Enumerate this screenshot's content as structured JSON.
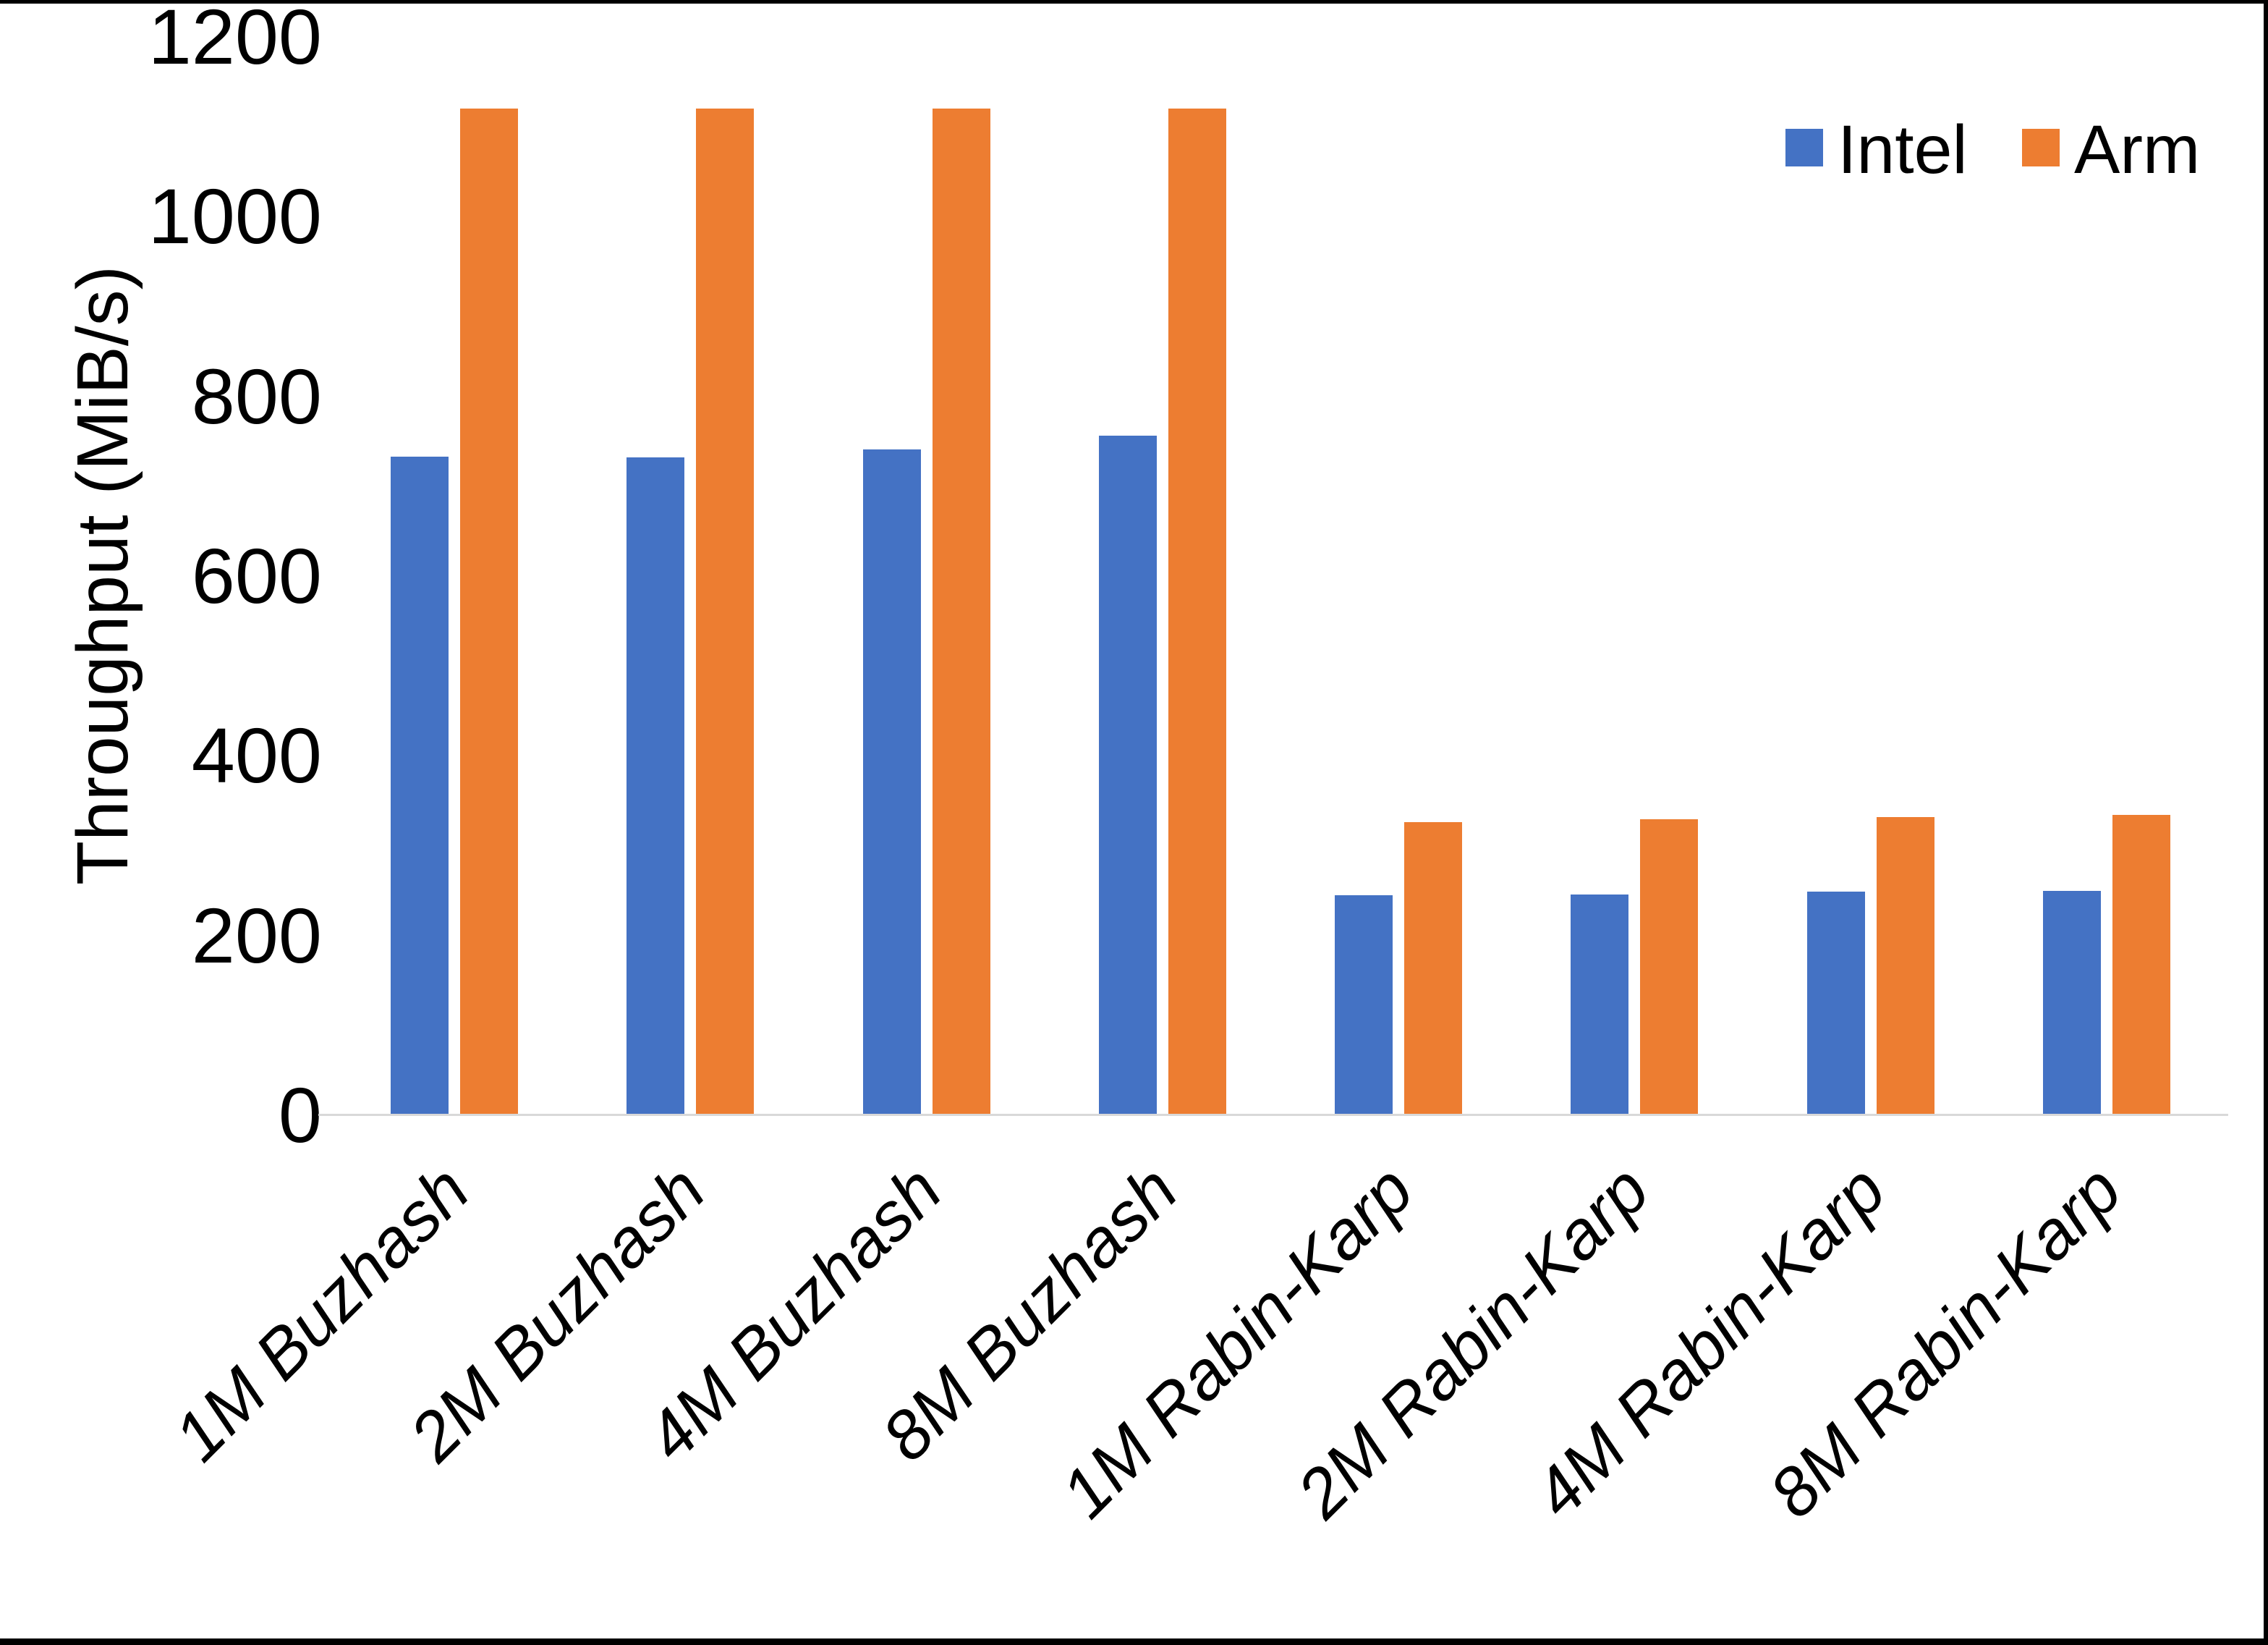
{
  "chart_data": {
    "type": "bar",
    "title": "",
    "xlabel": "",
    "ylabel": "Throughput (MiB/s)",
    "ylim": [
      0,
      1200
    ],
    "yticks": [
      0,
      200,
      400,
      600,
      800,
      1000,
      1200
    ],
    "grid": false,
    "legend_position": "top-right",
    "categories": [
      "1M Buzhash",
      "2M Buzhash",
      "4M Buzhash",
      "8M Buzhash",
      "1M Rabin-Karp",
      "2M Rabin-Karp",
      "4M Rabin-Karp",
      "8M Rabin-Karp"
    ],
    "series": [
      {
        "name": "Intel",
        "color": "#4472C4",
        "values": [
          733,
          732,
          741,
          756,
          245,
          246,
          249,
          250
        ]
      },
      {
        "name": "Arm",
        "color": "#ED7D31",
        "values": [
          1120,
          1120,
          1120,
          1120,
          326,
          329,
          332,
          334
        ]
      }
    ]
  },
  "axes": {
    "y_title": "Throughput (MiB/s)"
  },
  "legend": {
    "items": [
      {
        "label": "Intel",
        "color": "#4472C4"
      },
      {
        "label": "Arm",
        "color": "#ED7D31"
      }
    ]
  },
  "colors": {
    "intel": "#4472C4",
    "arm": "#ED7D31",
    "axis_line": "#D9D9D9",
    "text": "#000000",
    "page_border": "#000000"
  }
}
